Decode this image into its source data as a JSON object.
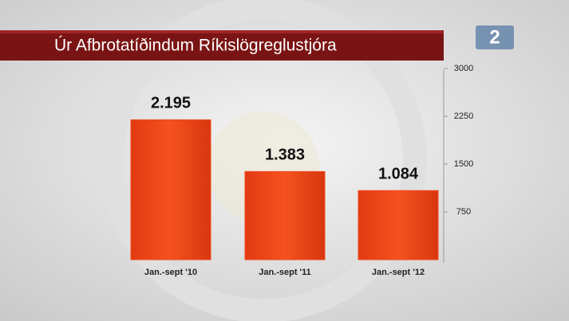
{
  "chart_data": {
    "type": "bar",
    "title": "Úr Afbrotatíðindum Ríkislögreglustjóra",
    "channel_logo": "2",
    "categories": [
      "Jan.-sept '10",
      "Jan.-sept '11",
      "Jan.-sept '12"
    ],
    "values": [
      2195,
      1383,
      1084
    ],
    "value_labels": [
      "2.195",
      "1.383",
      "1.084"
    ],
    "color": "#f2491d",
    "ylim": [
      0,
      3000
    ],
    "yticks": [
      750,
      1500,
      2250,
      3000
    ],
    "grid": false
  }
}
